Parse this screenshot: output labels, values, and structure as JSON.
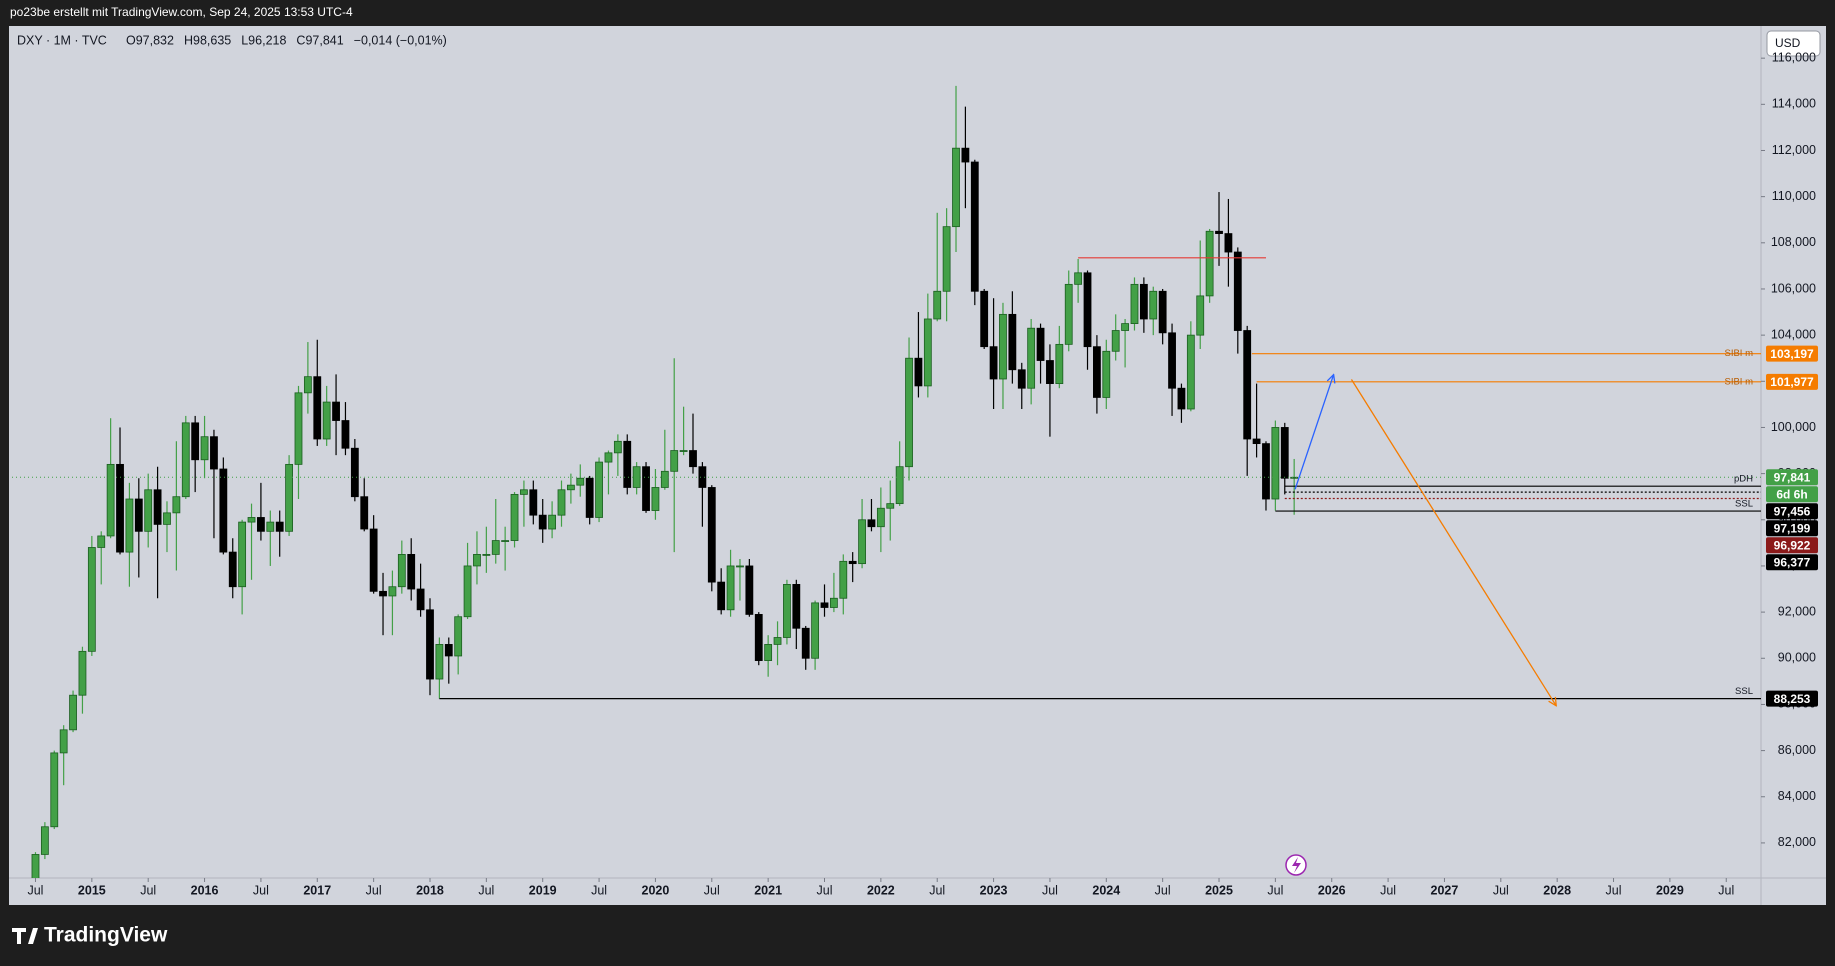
{
  "header": "po23be erstellt mit TradingView.com, Sep 24, 2025 13:53 UTC-4",
  "footer": "TradingView",
  "chart_data": {
    "type": "candlestick",
    "symbol": "DXY · 1M · TVC",
    "ohlc_labels": [
      "O97,832",
      "H98,635",
      "L96,218",
      "C97,841",
      "−0,014 (−0,01%)"
    ],
    "currency": "USD",
    "open": [
      80.1,
      81.5,
      82.7,
      85.9,
      86.9,
      88.4,
      90.3,
      94.8,
      95.3,
      98.4,
      94.6,
      96.9,
      95.5,
      97.3,
      95.8,
      96.3,
      97.0,
      100.2,
      98.6,
      99.6,
      98.2,
      94.6,
      93.1,
      95.9,
      96.1,
      95.5,
      95.9,
      95.5,
      98.4,
      101.5,
      102.2,
      99.5,
      101.1,
      100.3,
      99.1,
      97.0,
      95.6,
      92.9,
      92.7,
      93.1,
      94.5,
      93.0,
      92.1,
      89.1,
      90.6,
      90.1,
      91.8,
      94.0,
      94.5,
      94.5,
      95.1,
      95.1,
      97.1,
      97.3,
      96.2,
      95.6,
      96.2,
      97.3,
      97.5,
      97.8,
      96.1,
      98.5,
      98.9,
      99.4,
      97.4,
      98.3,
      96.4,
      97.4,
      98.1,
      99.0,
      99.0,
      98.3,
      97.4,
      93.3,
      92.1,
      94.0,
      94.0,
      91.9,
      89.9,
      90.6,
      90.9,
      93.2,
      91.3,
      90.0,
      92.4,
      92.2,
      92.6,
      94.2,
      94.1,
      96.0,
      95.7,
      96.5,
      96.7,
      98.3,
      103.0,
      101.8,
      104.7,
      105.9,
      108.7,
      112.1,
      111.5,
      105.9,
      103.5,
      102.1,
      104.9,
      102.5,
      101.7,
      104.3,
      102.9,
      101.9,
      103.6,
      106.2,
      106.7,
      103.5,
      101.3,
      103.3,
      104.2,
      104.5,
      106.2,
      104.7,
      105.9,
      104.1,
      101.7,
      100.8,
      104.0,
      105.7,
      108.5,
      108.4,
      107.6,
      104.2,
      99.5,
      99.3,
      96.9,
      100.0,
      97.832
    ],
    "high": [
      81.6,
      82.9,
      86.0,
      87.1,
      88.6,
      90.5,
      95.3,
      95.5,
      100.4,
      100.0,
      97.6,
      97.8,
      98.0,
      98.3,
      96.8,
      99.4,
      100.5,
      100.5,
      100.5,
      99.9,
      98.7,
      95.2,
      96.0,
      96.7,
      97.6,
      96.4,
      96.4,
      98.8,
      101.8,
      103.7,
      103.8,
      101.8,
      102.3,
      101.1,
      99.5,
      97.8,
      96.2,
      93.7,
      93.8,
      95.1,
      95.2,
      94.1,
      92.6,
      90.9,
      90.9,
      91.9,
      95.0,
      95.5,
      95.7,
      96.9,
      95.7,
      97.2,
      97.7,
      97.7,
      96.9,
      96.8,
      97.7,
      98.0,
      98.4,
      97.9,
      98.7,
      99.0,
      99.7,
      99.7,
      98.5,
      98.5,
      98.2,
      99.9,
      103.0,
      100.9,
      100.6,
      98.5,
      97.5,
      93.9,
      94.7,
      94.3,
      94.3,
      92.0,
      91.0,
      91.6,
      93.4,
      93.4,
      91.4,
      92.5,
      93.2,
      93.7,
      94.5,
      94.6,
      96.9,
      96.9,
      97.4,
      97.7,
      99.4,
      103.9,
      105.0,
      105.8,
      109.3,
      109.5,
      114.8,
      113.9,
      111.6,
      106.0,
      105.6,
      105.4,
      105.9,
      102.8,
      104.7,
      104.5,
      103.6,
      104.4,
      106.8,
      107.3,
      106.8,
      104.0,
      103.8,
      104.9,
      104.7,
      106.5,
      106.5,
      106.1,
      106.0,
      104.5,
      101.9,
      104.6,
      108.1,
      108.6,
      110.2,
      109.9,
      107.8,
      104.4,
      101.9,
      99.4,
      100.3,
      100.2,
      98.635
    ],
    "low": [
      80.0,
      81.3,
      82.6,
      84.5,
      86.8,
      87.6,
      90.1,
      93.2,
      95.2,
      94.5,
      93.1,
      93.5,
      94.8,
      92.6,
      94.6,
      93.8,
      96.9,
      97.2,
      97.8,
      95.2,
      94.5,
      92.6,
      91.9,
      93.4,
      95.1,
      94.0,
      94.4,
      95.3,
      96.9,
      100.6,
      99.2,
      99.2,
      98.8,
      98.8,
      96.8,
      95.5,
      92.8,
      91.0,
      91.0,
      92.8,
      92.5,
      91.8,
      88.4,
      88.253,
      88.9,
      89.3,
      91.7,
      93.2,
      93.7,
      94.1,
      93.8,
      94.8,
      95.7,
      95.8,
      95.0,
      95.2,
      95.7,
      96.7,
      97.0,
      95.8,
      95.9,
      97.1,
      97.9,
      97.1,
      97.1,
      96.3,
      96.0,
      97.3,
      94.6,
      98.8,
      98.0,
      95.7,
      92.9,
      91.9,
      91.8,
      92.5,
      91.8,
      89.7,
      89.2,
      89.7,
      90.6,
      90.4,
      89.5,
      89.5,
      91.8,
      92.0,
      91.9,
      93.3,
      93.9,
      95.5,
      94.6,
      95.1,
      96.6,
      97.7,
      101.3,
      101.3,
      104.6,
      104.6,
      107.6,
      109.5,
      105.3,
      103.4,
      100.8,
      100.8,
      101.9,
      100.8,
      101.0,
      101.9,
      99.6,
      101.7,
      103.3,
      105.4,
      102.5,
      100.6,
      100.8,
      102.9,
      102.6,
      104.2,
      104.1,
      104.0,
      103.6,
      100.5,
      100.2,
      100.7,
      103.4,
      105.4,
      107.0,
      106.1,
      103.2,
      97.9,
      98.7,
      96.4,
      96.4,
      97.1,
      96.218
    ],
    "close": [
      81.5,
      82.7,
      85.9,
      86.9,
      88.4,
      90.3,
      94.8,
      95.3,
      98.4,
      94.6,
      96.9,
      95.5,
      97.3,
      95.8,
      96.3,
      97.0,
      100.2,
      98.6,
      99.6,
      98.2,
      94.6,
      93.1,
      95.9,
      96.1,
      95.5,
      95.9,
      95.5,
      98.4,
      101.5,
      102.2,
      99.5,
      101.1,
      100.3,
      99.1,
      97.0,
      95.6,
      92.9,
      92.7,
      93.1,
      94.5,
      93.0,
      92.1,
      89.1,
      90.6,
      90.1,
      91.8,
      94.0,
      94.5,
      94.5,
      95.1,
      95.1,
      97.1,
      97.3,
      96.2,
      95.6,
      96.2,
      97.3,
      97.5,
      97.8,
      96.1,
      98.5,
      98.9,
      99.4,
      97.4,
      98.3,
      96.4,
      97.4,
      98.1,
      99.0,
      99.0,
      98.3,
      97.4,
      93.3,
      92.1,
      94.0,
      94.0,
      91.9,
      89.9,
      90.6,
      90.9,
      93.2,
      91.3,
      90.0,
      92.4,
      92.2,
      92.6,
      94.2,
      94.1,
      96.0,
      95.7,
      96.5,
      96.7,
      98.3,
      103.0,
      101.8,
      104.7,
      105.9,
      108.7,
      112.1,
      111.5,
      105.9,
      103.5,
      102.1,
      104.9,
      102.5,
      101.7,
      104.3,
      102.9,
      101.9,
      103.6,
      106.2,
      106.7,
      103.5,
      101.3,
      103.3,
      104.2,
      104.5,
      106.2,
      104.7,
      105.9,
      104.1,
      101.7,
      100.8,
      104.0,
      105.7,
      108.5,
      108.4,
      107.6,
      104.2,
      99.5,
      99.3,
      96.9,
      100.0,
      97.8,
      97.841
    ],
    "up_color": "#43a047",
    "down_color": "#000000",
    "last_price_label": "97,841",
    "countdown": "6d 6h",
    "last_color": "#43a047",
    "xlim": [
      -2.5,
      183.7
    ],
    "xticks": [
      {
        "value": 0,
        "label": "Jul"
      },
      {
        "value": 6,
        "label": "2015"
      },
      {
        "value": 12,
        "label": "Jul"
      },
      {
        "value": 18,
        "label": "2016"
      },
      {
        "value": 24,
        "label": "Jul"
      },
      {
        "value": 30,
        "label": "2017"
      },
      {
        "value": 36,
        "label": "Jul"
      },
      {
        "value": 42,
        "label": "2018"
      },
      {
        "value": 48,
        "label": "Jul"
      },
      {
        "value": 54,
        "label": "2019"
      },
      {
        "value": 60,
        "label": "Jul"
      },
      {
        "value": 66,
        "label": "2020"
      },
      {
        "value": 72,
        "label": "Jul"
      },
      {
        "value": 78,
        "label": "2021"
      },
      {
        "value": 84,
        "label": "Jul"
      },
      {
        "value": 90,
        "label": "2022"
      },
      {
        "value": 96,
        "label": "Jul"
      },
      {
        "value": 102,
        "label": "2023"
      },
      {
        "value": 108,
        "label": "Jul"
      },
      {
        "value": 114,
        "label": "2024"
      },
      {
        "value": 120,
        "label": "Jul"
      },
      {
        "value": 126,
        "label": "2025"
      },
      {
        "value": 132,
        "label": "Jul"
      },
      {
        "value": 138,
        "label": "2026"
      },
      {
        "value": 144,
        "label": "Jul"
      },
      {
        "value": 150,
        "label": "2027"
      },
      {
        "value": 156,
        "label": "Jul"
      },
      {
        "value": 162,
        "label": "2028"
      },
      {
        "value": 168,
        "label": "Jul"
      },
      {
        "value": 174,
        "label": "2029"
      },
      {
        "value": 180,
        "label": "Jul"
      }
    ],
    "ylim": [
      80.48,
      117.35
    ],
    "yticks": [
      {
        "value": 82,
        "label": "82,000"
      },
      {
        "value": 84,
        "label": "84,000"
      },
      {
        "value": 86,
        "label": "86,000"
      },
      {
        "value": 88,
        "label": "88,000"
      },
      {
        "value": 90,
        "label": "90,000"
      },
      {
        "value": 92,
        "label": "92,000"
      },
      {
        "value": 94,
        "label": "94,000"
      },
      {
        "value": 96,
        "label": "96,000"
      },
      {
        "value": 98,
        "label": "98,000"
      },
      {
        "value": 100,
        "label": "100,000"
      },
      {
        "value": 102,
        "label": "102,000"
      },
      {
        "value": 104,
        "label": "104,000"
      },
      {
        "value": 106,
        "label": "106,000"
      },
      {
        "value": 108,
        "label": "108,000"
      },
      {
        "value": 110,
        "label": "110,000"
      },
      {
        "value": 112,
        "label": "112,000"
      },
      {
        "value": 114,
        "label": "114,000"
      },
      {
        "value": 116,
        "label": "116,000"
      }
    ],
    "grid": false,
    "levels": [
      {
        "name": "SIBI m",
        "value": 103.197,
        "label": "103,197",
        "color": "#f57c00",
        "start": 129.5
      },
      {
        "name": "SIBI m",
        "value": 101.977,
        "label": "101,977",
        "color": "#f57c00",
        "start": 130
      },
      {
        "name": "pDH",
        "value": 97.456,
        "label": "97,456",
        "color": "#000000",
        "start": 133
      },
      {
        "value": 97.199,
        "label": "97,199",
        "color": "#000000",
        "start": 133
      },
      {
        "value": 96.922,
        "label": "96,922",
        "color": "#8b1a1a",
        "start": 133
      },
      {
        "name": "SSL",
        "value": 96.377,
        "label": "96,377",
        "color": "#000000",
        "start": 132
      },
      {
        "name": "SSL",
        "value": 88.253,
        "label": "88,253",
        "color": "#000000",
        "start": 43
      },
      {
        "value": 107.35,
        "color": "#e53935",
        "start": 111,
        "end": 131
      }
    ],
    "projections": [
      {
        "color": "#2962ff",
        "points": [
          [
            134.1,
            97.32
          ],
          [
            138.2,
            102.29
          ]
        ]
      },
      {
        "color": "#f57c00",
        "points": [
          [
            140.1,
            102.08
          ],
          [
            161.9,
            87.94
          ]
        ]
      }
    ]
  }
}
